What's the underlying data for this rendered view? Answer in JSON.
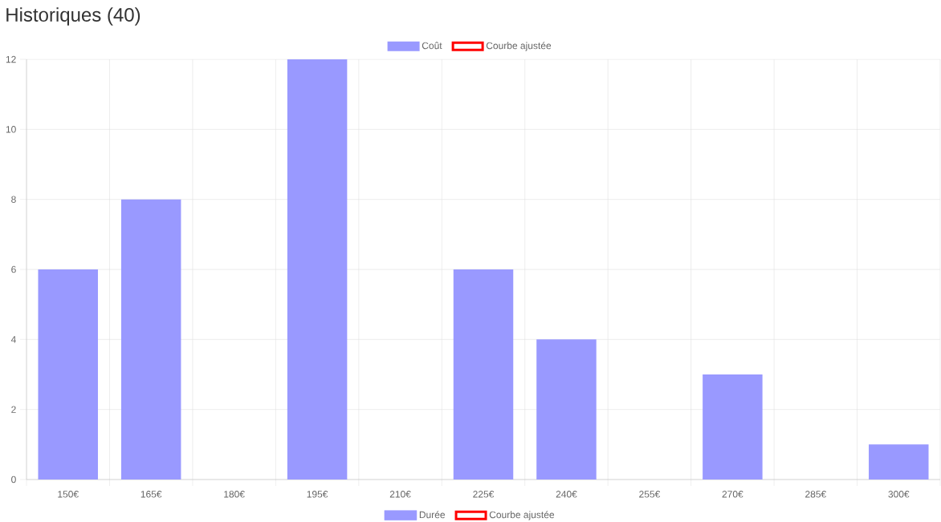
{
  "chart_data": [
    {
      "type": "bar",
      "title": "Historiques (40)",
      "categories": [
        "150€",
        "165€",
        "180€",
        "195€",
        "210€",
        "225€",
        "240€",
        "255€",
        "270€",
        "285€",
        "300€"
      ],
      "series": [
        {
          "name": "Coût",
          "color": "#9999ff",
          "values": [
            6,
            8,
            0,
            12,
            0,
            6,
            4,
            0,
            3,
            0,
            1
          ]
        },
        {
          "name": "Courbe ajustée",
          "type": "line",
          "color": "#ff0000",
          "values": [
            null,
            null,
            null,
            null,
            null,
            null,
            null,
            null,
            null,
            null,
            null
          ]
        }
      ],
      "ylim": [
        0,
        12
      ],
      "yticks": [
        0,
        2,
        4,
        6,
        8,
        10,
        12
      ],
      "grid": true,
      "legend": "top"
    },
    {
      "type": "other",
      "series": [
        {
          "name": "Durée",
          "type": "bar",
          "color": "#9999ff"
        },
        {
          "name": "Courbe ajustée",
          "type": "line",
          "color": "#ff0000"
        }
      ],
      "legend": "top"
    }
  ]
}
